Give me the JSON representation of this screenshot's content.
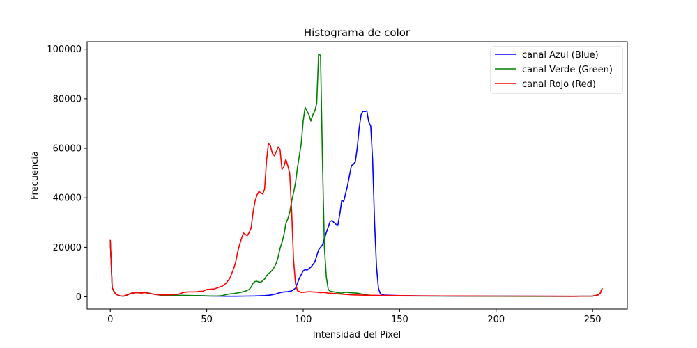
{
  "chart_data": {
    "type": "line",
    "title": "Histograma de color",
    "xlabel": "Intensidad del Pixel",
    "ylabel": "Frecuencia",
    "xlim": [
      -12,
      268
    ],
    "ylim": [
      -4900,
      103000
    ],
    "xticks": [
      0,
      50,
      100,
      150,
      200,
      250
    ],
    "yticks": [
      0,
      20000,
      40000,
      60000,
      80000,
      100000
    ],
    "grid": false,
    "legend_position": "top-right",
    "series": [
      {
        "name": "canal Azul (Blue)",
        "color": "#0000ff",
        "points": [
          [
            0,
            22500
          ],
          [
            1,
            3500
          ],
          [
            2,
            2000
          ],
          [
            3,
            1000
          ],
          [
            5,
            400
          ],
          [
            7,
            300
          ],
          [
            9,
            800
          ],
          [
            11,
            1500
          ],
          [
            14,
            1700
          ],
          [
            16,
            1600
          ],
          [
            18,
            1900
          ],
          [
            20,
            1500
          ],
          [
            23,
            1000
          ],
          [
            26,
            700
          ],
          [
            30,
            600
          ],
          [
            35,
            550
          ],
          [
            40,
            500
          ],
          [
            45,
            450
          ],
          [
            50,
            350
          ],
          [
            55,
            300
          ],
          [
            60,
            250
          ],
          [
            65,
            250
          ],
          [
            70,
            300
          ],
          [
            75,
            350
          ],
          [
            80,
            500
          ],
          [
            83,
            700
          ],
          [
            86,
            1200
          ],
          [
            88,
            1700
          ],
          [
            90,
            2000
          ],
          [
            92,
            2100
          ],
          [
            94,
            2400
          ],
          [
            96,
            3500
          ],
          [
            98,
            7500
          ],
          [
            100,
            10500
          ],
          [
            101,
            11000
          ],
          [
            102,
            10800
          ],
          [
            104,
            12000
          ],
          [
            106,
            14000
          ],
          [
            108,
            19000
          ],
          [
            110,
            21000
          ],
          [
            112,
            26000
          ],
          [
            114,
            30500
          ],
          [
            115,
            30800
          ],
          [
            116,
            30000
          ],
          [
            117,
            29300
          ],
          [
            118,
            29100
          ],
          [
            119,
            33500
          ],
          [
            120,
            39000
          ],
          [
            121,
            38500
          ],
          [
            123,
            45000
          ],
          [
            125,
            53000
          ],
          [
            126,
            53500
          ],
          [
            127,
            54500
          ],
          [
            128,
            60000
          ],
          [
            129,
            68000
          ],
          [
            130,
            73500
          ],
          [
            131,
            75000
          ],
          [
            132,
            74800
          ],
          [
            133,
            75100
          ],
          [
            134,
            70500
          ],
          [
            135,
            69000
          ],
          [
            136,
            55000
          ],
          [
            137,
            30000
          ],
          [
            138,
            12000
          ],
          [
            139,
            3500
          ],
          [
            140,
            1200
          ],
          [
            142,
            700
          ],
          [
            150,
            500
          ],
          [
            160,
            400
          ],
          [
            180,
            300
          ],
          [
            200,
            300
          ],
          [
            220,
            250
          ],
          [
            240,
            200
          ],
          [
            250,
            300
          ],
          [
            253,
            800
          ],
          [
            254,
            1500
          ],
          [
            255,
            3500
          ]
        ]
      },
      {
        "name": "canal Verde (Green)",
        "color": "#008000",
        "points": [
          [
            0,
            22800
          ],
          [
            1,
            3600
          ],
          [
            2,
            2000
          ],
          [
            3,
            1000
          ],
          [
            5,
            400
          ],
          [
            7,
            300
          ],
          [
            9,
            800
          ],
          [
            11,
            1500
          ],
          [
            14,
            1700
          ],
          [
            16,
            1600
          ],
          [
            18,
            1800
          ],
          [
            20,
            1500
          ],
          [
            23,
            1000
          ],
          [
            26,
            700
          ],
          [
            30,
            600
          ],
          [
            35,
            600
          ],
          [
            40,
            550
          ],
          [
            45,
            500
          ],
          [
            50,
            400
          ],
          [
            55,
            300
          ],
          [
            58,
            500
          ],
          [
            60,
            900
          ],
          [
            62,
            1200
          ],
          [
            64,
            1300
          ],
          [
            66,
            1600
          ],
          [
            68,
            1900
          ],
          [
            70,
            2300
          ],
          [
            72,
            3000
          ],
          [
            73,
            4000
          ],
          [
            74,
            5500
          ],
          [
            75,
            6200
          ],
          [
            76,
            6300
          ],
          [
            77,
            6000
          ],
          [
            78,
            5900
          ],
          [
            79,
            6500
          ],
          [
            80,
            7200
          ],
          [
            81,
            8500
          ],
          [
            82,
            9300
          ],
          [
            83,
            10000
          ],
          [
            84,
            10800
          ],
          [
            85,
            12000
          ],
          [
            86,
            13500
          ],
          [
            87,
            16000
          ],
          [
            88,
            19500
          ],
          [
            89,
            22000
          ],
          [
            90,
            25000
          ],
          [
            91,
            29500
          ],
          [
            92,
            31500
          ],
          [
            93,
            34000
          ],
          [
            94,
            38500
          ],
          [
            95,
            42000
          ],
          [
            96,
            46000
          ],
          [
            97,
            52000
          ],
          [
            98,
            57000
          ],
          [
            99,
            62000
          ],
          [
            100,
            71000
          ],
          [
            101,
            76500
          ],
          [
            102,
            75000
          ],
          [
            103,
            73500
          ],
          [
            104,
            71000
          ],
          [
            105,
            73500
          ],
          [
            106,
            75000
          ],
          [
            107,
            78000
          ],
          [
            108,
            98000
          ],
          [
            109,
            97500
          ],
          [
            110,
            55000
          ],
          [
            111,
            20000
          ],
          [
            112,
            8000
          ],
          [
            113,
            3000
          ],
          [
            114,
            2300
          ],
          [
            116,
            2000
          ],
          [
            118,
            1700
          ],
          [
            120,
            1500
          ],
          [
            122,
            1900
          ],
          [
            124,
            1700
          ],
          [
            126,
            1600
          ],
          [
            128,
            1500
          ],
          [
            130,
            1200
          ],
          [
            132,
            900
          ],
          [
            135,
            600
          ],
          [
            140,
            500
          ],
          [
            150,
            400
          ],
          [
            160,
            350
          ],
          [
            180,
            300
          ],
          [
            200,
            250
          ],
          [
            220,
            200
          ],
          [
            240,
            200
          ],
          [
            250,
            300
          ],
          [
            253,
            800
          ],
          [
            254,
            1500
          ],
          [
            255,
            3500
          ]
        ]
      },
      {
        "name": "canal Rojo (Red)",
        "color": "#ff0000",
        "points": [
          [
            0,
            23000
          ],
          [
            1,
            3800
          ],
          [
            2,
            2200
          ],
          [
            3,
            1100
          ],
          [
            5,
            400
          ],
          [
            7,
            300
          ],
          [
            9,
            900
          ],
          [
            11,
            1500
          ],
          [
            14,
            1700
          ],
          [
            16,
            1500
          ],
          [
            18,
            1700
          ],
          [
            20,
            1400
          ],
          [
            23,
            1000
          ],
          [
            26,
            800
          ],
          [
            30,
            800
          ],
          [
            35,
            1000
          ],
          [
            38,
            1800
          ],
          [
            40,
            2000
          ],
          [
            44,
            2000
          ],
          [
            46,
            2200
          ],
          [
            48,
            2300
          ],
          [
            50,
            3000
          ],
          [
            54,
            3200
          ],
          [
            56,
            3800
          ],
          [
            58,
            4300
          ],
          [
            60,
            5500
          ],
          [
            62,
            7500
          ],
          [
            64,
            11500
          ],
          [
            65,
            14000
          ],
          [
            66,
            18000
          ],
          [
            67,
            21000
          ],
          [
            68,
            23500
          ],
          [
            69,
            25800
          ],
          [
            70,
            25200
          ],
          [
            71,
            24700
          ],
          [
            72,
            26000
          ],
          [
            73,
            27800
          ],
          [
            74,
            34000
          ],
          [
            75,
            38500
          ],
          [
            76,
            41000
          ],
          [
            77,
            42500
          ],
          [
            78,
            42000
          ],
          [
            79,
            41500
          ],
          [
            80,
            43500
          ],
          [
            81,
            55000
          ],
          [
            82,
            62000
          ],
          [
            83,
            61000
          ],
          [
            84,
            58000
          ],
          [
            85,
            57000
          ],
          [
            86,
            58500
          ],
          [
            87,
            60500
          ],
          [
            88,
            59500
          ],
          [
            89,
            51500
          ],
          [
            90,
            52500
          ],
          [
            91,
            55500
          ],
          [
            92,
            53000
          ],
          [
            93,
            50000
          ],
          [
            94,
            35000
          ],
          [
            95,
            15000
          ],
          [
            96,
            5500
          ],
          [
            97,
            2500
          ],
          [
            99,
            1800
          ],
          [
            101,
            1900
          ],
          [
            103,
            2100
          ],
          [
            105,
            2000
          ],
          [
            107,
            1900
          ],
          [
            109,
            1700
          ],
          [
            111,
            1800
          ],
          [
            113,
            1500
          ],
          [
            115,
            1400
          ],
          [
            117,
            1300
          ],
          [
            120,
            1100
          ],
          [
            125,
            800
          ],
          [
            130,
            700
          ],
          [
            135,
            600
          ],
          [
            140,
            550
          ],
          [
            150,
            500
          ],
          [
            160,
            400
          ],
          [
            180,
            350
          ],
          [
            200,
            300
          ],
          [
            220,
            300
          ],
          [
            240,
            250
          ],
          [
            250,
            300
          ],
          [
            253,
            800
          ],
          [
            254,
            1500
          ],
          [
            255,
            3600
          ]
        ]
      }
    ]
  }
}
